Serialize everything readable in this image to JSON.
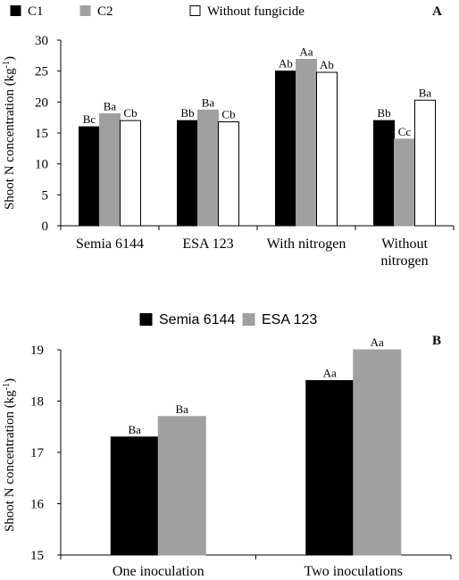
{
  "chart_data": [
    {
      "panel_label": "A",
      "type": "bar",
      "categories": [
        "Semia 6144",
        "ESA 123",
        "With nitrogen",
        "Without nitrogen"
      ],
      "category_lines": [
        [
          "Semia 6144"
        ],
        [
          "ESA 123"
        ],
        [
          "With nitrogen"
        ],
        [
          "Without",
          "nitrogen"
        ]
      ],
      "series": [
        {
          "name": "C1",
          "color": "#000000",
          "values": [
            16,
            17,
            25,
            17
          ],
          "labels": [
            "Bc",
            "Bb",
            "Ab",
            "Bb"
          ]
        },
        {
          "name": "C2",
          "color": "#a0a0a0",
          "values": [
            18.1,
            18.7,
            26.9,
            14
          ],
          "labels": [
            "Ba",
            "Ba",
            "Aa",
            "Cc"
          ]
        },
        {
          "name": "Without fungicide",
          "color": "#ffffff",
          "values": [
            17,
            16.8,
            24.8,
            20.3
          ],
          "labels": [
            "Cb",
            "Cb",
            "Ab",
            "Ba"
          ]
        }
      ],
      "ylabel": "Shoot N concentration (kg",
      "ylabel_sup": "-1",
      "ylabel_tail": ")",
      "ylim": [
        0,
        30
      ],
      "yticks": [
        "0",
        "5",
        "10",
        "15",
        "20",
        "25",
        "30"
      ],
      "legend_position": "top",
      "grid": false
    },
    {
      "panel_label": "B",
      "type": "bar",
      "categories": [
        "One inoculation",
        "Two inoculations"
      ],
      "category_lines": [
        [
          "One inoculation"
        ],
        [
          "Two inoculations"
        ]
      ],
      "series": [
        {
          "name": "Semia 6144",
          "color": "#000000",
          "values": [
            17.3,
            18.4
          ],
          "labels": [
            "Ba",
            "Aa"
          ]
        },
        {
          "name": "ESA 123",
          "color": "#a0a0a0",
          "values": [
            17.7,
            19.0
          ],
          "labels": [
            "Ba",
            "Aa"
          ]
        }
      ],
      "ylabel": "Shoot N concentration (kg",
      "ylabel_sup": "-1",
      "ylabel_tail": ")",
      "ylim": [
        15,
        19
      ],
      "yticks": [
        "15",
        "16",
        "17",
        "18",
        "19"
      ],
      "legend_position": "top",
      "grid": false
    }
  ]
}
